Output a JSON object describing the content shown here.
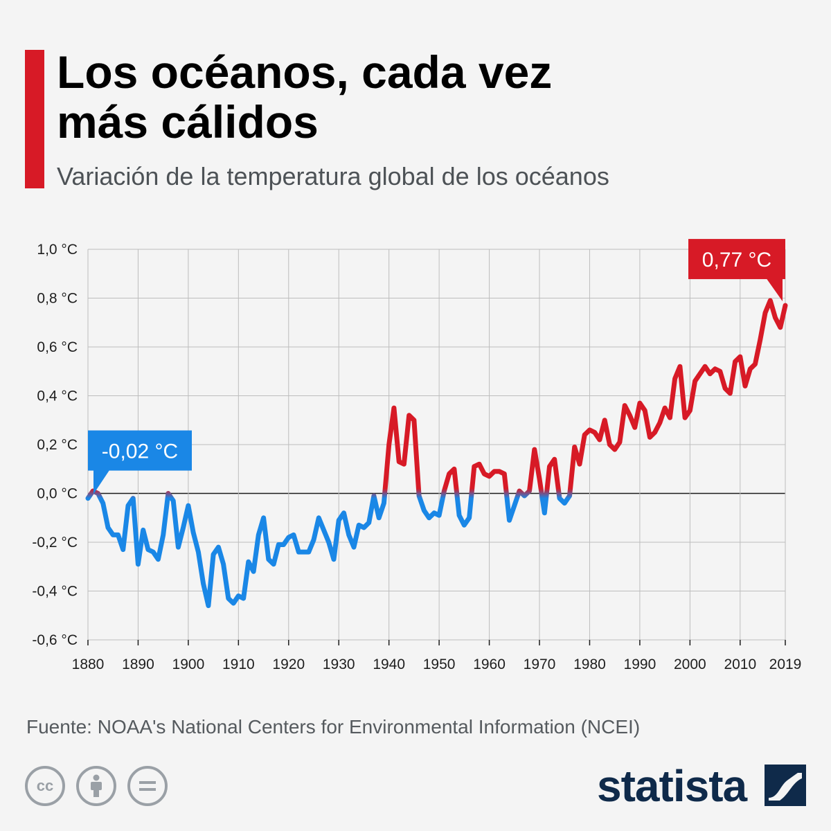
{
  "header": {
    "title_line1": "Los océanos, cada vez",
    "title_line2": "más cálidos",
    "subtitle": "Variación de la temperatura global de los océanos"
  },
  "colors": {
    "accent": "#d71a26",
    "warm": "#d71a26",
    "cool": "#1a87e6",
    "brand": "#0f2a4a"
  },
  "chart_data": {
    "type": "line",
    "title": "Variación de la temperatura global de los océanos",
    "xlabel": "",
    "ylabel": "",
    "xlim": [
      1880,
      2019
    ],
    "ylim": [
      -0.6,
      1.0
    ],
    "y_ticks": [
      1.0,
      0.8,
      0.6,
      0.4,
      0.2,
      0.0,
      -0.2,
      -0.4,
      -0.6
    ],
    "y_tick_labels": [
      "1,0 °C",
      "0,8 °C",
      "0,6 °C",
      "0,4 °C",
      "0,2 °C",
      "0,0 °C",
      "-0,2 °C",
      "-0,4 °C",
      "-0,6 °C"
    ],
    "x_ticks": [
      1880,
      1890,
      1900,
      1910,
      1920,
      1930,
      1940,
      1950,
      1960,
      1970,
      1980,
      1990,
      2000,
      2010,
      2019
    ],
    "x_tick_labels": [
      "1880",
      "1890",
      "1900",
      "1910",
      "1920",
      "1930",
      "1940",
      "1950",
      "1960",
      "1970",
      "1980",
      "1990",
      "2000",
      "2010",
      "2019"
    ],
    "grid": true,
    "series": [
      {
        "name": "Variación de la temperatura global de los océanos",
        "x": [
          1880,
          1881,
          1882,
          1883,
          1884,
          1885,
          1886,
          1887,
          1888,
          1889,
          1890,
          1891,
          1892,
          1893,
          1894,
          1895,
          1896,
          1897,
          1898,
          1899,
          1900,
          1901,
          1902,
          1903,
          1904,
          1905,
          1906,
          1907,
          1908,
          1909,
          1910,
          1911,
          1912,
          1913,
          1914,
          1915,
          1916,
          1917,
          1918,
          1919,
          1920,
          1921,
          1922,
          1923,
          1924,
          1925,
          1926,
          1927,
          1928,
          1929,
          1930,
          1931,
          1932,
          1933,
          1934,
          1935,
          1936,
          1937,
          1938,
          1939,
          1940,
          1941,
          1942,
          1943,
          1944,
          1945,
          1946,
          1947,
          1948,
          1949,
          1950,
          1951,
          1952,
          1953,
          1954,
          1955,
          1956,
          1957,
          1958,
          1959,
          1960,
          1961,
          1962,
          1963,
          1964,
          1965,
          1966,
          1967,
          1968,
          1969,
          1970,
          1971,
          1972,
          1973,
          1974,
          1975,
          1976,
          1977,
          1978,
          1979,
          1980,
          1981,
          1982,
          1983,
          1984,
          1985,
          1986,
          1987,
          1988,
          1989,
          1990,
          1991,
          1992,
          1993,
          1994,
          1995,
          1996,
          1997,
          1998,
          1999,
          2000,
          2001,
          2002,
          2003,
          2004,
          2005,
          2006,
          2007,
          2008,
          2009,
          2010,
          2011,
          2012,
          2013,
          2014,
          2015,
          2016,
          2017,
          2018,
          2019
        ],
        "values": [
          -0.02,
          0.01,
          0.0,
          -0.04,
          -0.14,
          -0.17,
          -0.17,
          -0.23,
          -0.05,
          -0.02,
          -0.29,
          -0.15,
          -0.23,
          -0.24,
          -0.27,
          -0.17,
          0.0,
          -0.03,
          -0.22,
          -0.14,
          -0.05,
          -0.16,
          -0.24,
          -0.37,
          -0.46,
          -0.25,
          -0.22,
          -0.29,
          -0.43,
          -0.45,
          -0.42,
          -0.43,
          -0.28,
          -0.32,
          -0.17,
          -0.1,
          -0.27,
          -0.29,
          -0.21,
          -0.21,
          -0.18,
          -0.17,
          -0.24,
          -0.24,
          -0.24,
          -0.19,
          -0.1,
          -0.15,
          -0.2,
          -0.27,
          -0.11,
          -0.08,
          -0.17,
          -0.22,
          -0.13,
          -0.14,
          -0.12,
          -0.01,
          -0.1,
          -0.04,
          0.2,
          0.35,
          0.13,
          0.12,
          0.32,
          0.3,
          -0.01,
          -0.07,
          -0.1,
          -0.08,
          -0.09,
          0.01,
          0.08,
          0.1,
          -0.09,
          -0.13,
          -0.1,
          0.11,
          0.12,
          0.08,
          0.07,
          0.09,
          0.09,
          0.08,
          -0.11,
          -0.05,
          0.01,
          -0.01,
          0.01,
          0.18,
          0.06,
          -0.08,
          0.11,
          0.14,
          -0.02,
          -0.04,
          -0.01,
          0.19,
          0.12,
          0.24,
          0.26,
          0.25,
          0.22,
          0.3,
          0.2,
          0.18,
          0.21,
          0.36,
          0.32,
          0.27,
          0.37,
          0.34,
          0.23,
          0.25,
          0.29,
          0.35,
          0.31,
          0.47,
          0.52,
          0.31,
          0.34,
          0.46,
          0.49,
          0.52,
          0.49,
          0.51,
          0.5,
          0.43,
          0.41,
          0.54,
          0.56,
          0.44,
          0.51,
          0.53,
          0.63,
          0.74,
          0.79,
          0.72,
          0.68,
          0.77
        ]
      }
    ],
    "annotations": [
      {
        "year": 1880,
        "value": -0.02,
        "label": "-0,02 °C"
      },
      {
        "year": 2019,
        "value": 0.77,
        "label": "0,77 °C"
      }
    ]
  },
  "footer": {
    "source": "Fuente: NOAA's National Centers for Environmental Information (NCEI)",
    "license_icons": [
      "cc-icon",
      "attribution-icon",
      "no-derivatives-icon"
    ],
    "brand": "statista"
  }
}
